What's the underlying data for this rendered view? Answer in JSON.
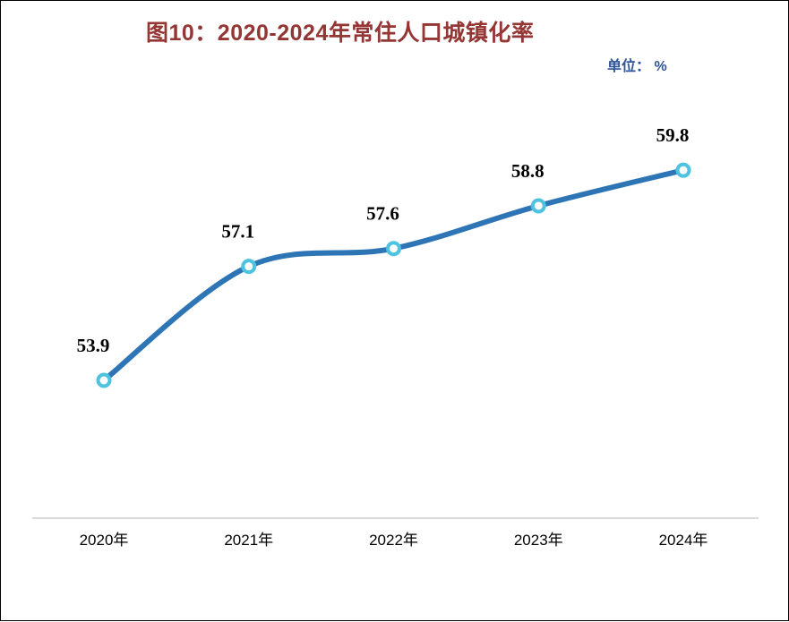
{
  "page": {
    "title": "图10：2020-2024年常住人口城镇化率",
    "unit_label": "单位：  %"
  },
  "colors": {
    "title_text": "#943634",
    "unit_text": "#2F5597",
    "line": "#2E75B6",
    "marker_ring": "#4EC3E0",
    "marker_fill": "#FFFFFF",
    "axis_line": "#D9D9D9",
    "data_label_text": "#000000",
    "tick_label_text": "#000000"
  },
  "chart_data": {
    "type": "line",
    "title": "图10：2020-2024年常住人口城镇化率",
    "unit": "单位：  %",
    "categories": [
      "2020年",
      "2021年",
      "2022年",
      "2023年",
      "2024年"
    ],
    "series": [
      {
        "name": "常住人口城镇化率",
        "values": [
          53.9,
          57.1,
          57.6,
          58.8,
          59.8
        ]
      }
    ],
    "data_labels": [
      "53.9",
      "57.1",
      "57.6",
      "58.8",
      "59.8"
    ],
    "xlabel": "",
    "ylabel": "",
    "ylim": [
      52.5,
      61.5
    ],
    "smoothed": true,
    "markers": "circle-ring",
    "grid": false,
    "legend_position": "none"
  }
}
